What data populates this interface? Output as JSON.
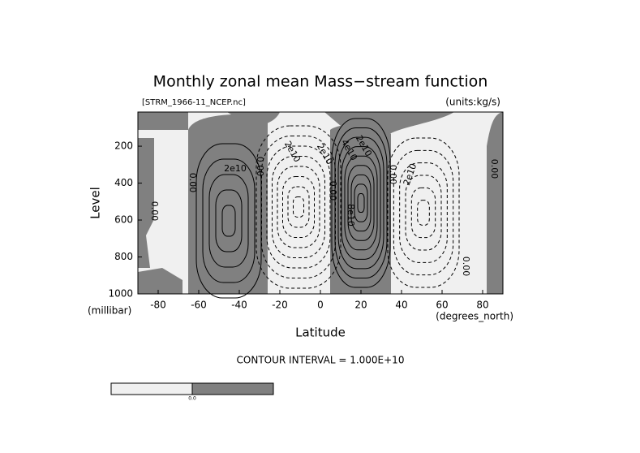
{
  "chart_data": {
    "type": "contour",
    "title": "Monthly zonal mean Mass−stream function",
    "file_label": "[STRM_1966-11_NCEP.nc]",
    "units_label": "(units:kg/s)",
    "xlabel": "Latitude",
    "ylabel": "Level",
    "x_units": "(degrees_north)",
    "y_units": "(millibar)",
    "contour_interval": "CONTOUR INTERVAL = 1.000E+10",
    "xlim": [
      -90,
      90
    ],
    "ylim": [
      1000,
      15
    ],
    "xticks": [
      -80,
      -60,
      -40,
      -20,
      0,
      20,
      40,
      60,
      80
    ],
    "yticks": [
      200,
      400,
      600,
      800,
      1000
    ],
    "contour_labels": [
      "0.00",
      "0.00",
      "2e10",
      "0.00",
      "2e10",
      "2e10",
      "0.00",
      "2e10",
      "4e10",
      "8e10",
      "0.00",
      "2e10",
      "0.00",
      "0.00"
    ],
    "colorbar_labels": [
      "0.0"
    ]
  }
}
